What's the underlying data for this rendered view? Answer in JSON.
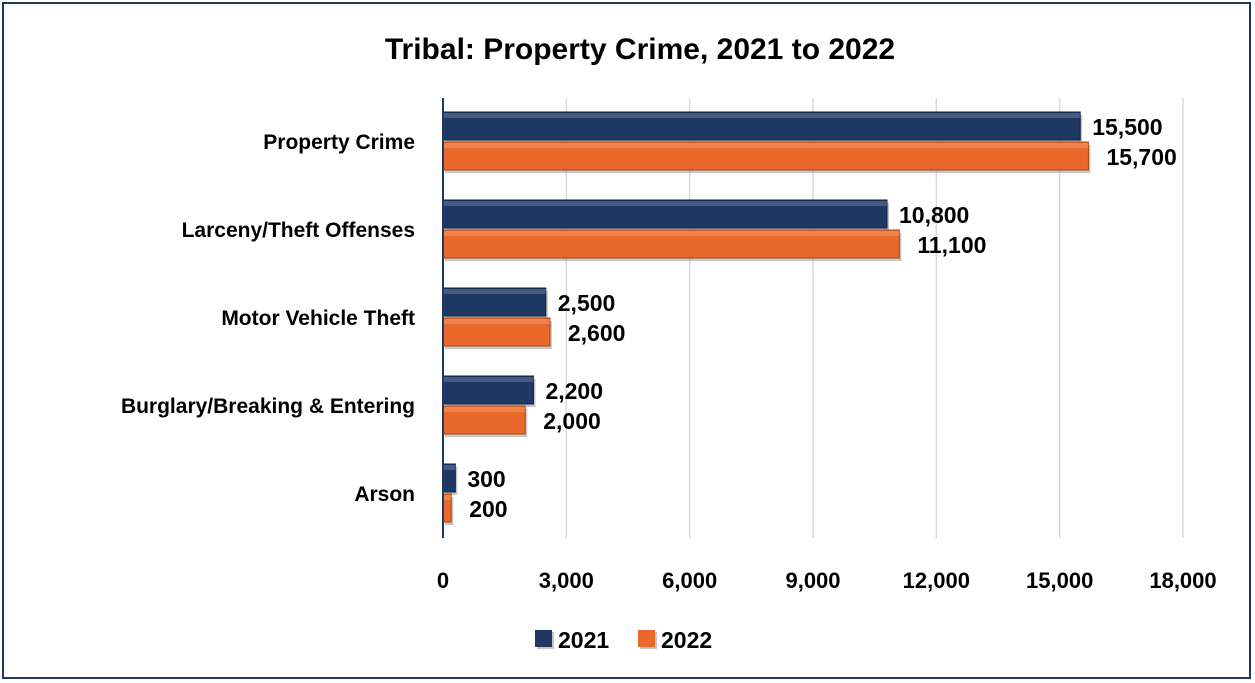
{
  "chart_data": {
    "type": "bar",
    "orientation": "horizontal",
    "title": "Tribal: Property Crime, 2021 to 2022",
    "categories": [
      "Property Crime",
      "Larceny/Theft Offenses",
      "Motor Vehicle Theft",
      "Burglary/Breaking & Entering",
      "Arson"
    ],
    "series": [
      {
        "name": "2021",
        "values": [
          15500,
          10800,
          2500,
          2200,
          300
        ],
        "labels": [
          "15,500",
          "10,800",
          "2,500",
          "2,200",
          "300"
        ],
        "color": "#1f3864"
      },
      {
        "name": "2022",
        "values": [
          15700,
          11100,
          2600,
          2000,
          200
        ],
        "labels": [
          "15,700",
          "11,100",
          "2,600",
          "2,000",
          "200"
        ],
        "color": "#e8692a"
      }
    ],
    "xlim": [
      0,
      18000
    ],
    "xticks": [
      0,
      3000,
      6000,
      9000,
      12000,
      15000,
      18000
    ],
    "xtick_labels": [
      "0",
      "3,000",
      "6,000",
      "9,000",
      "12,000",
      "15,000",
      "18,000"
    ],
    "grid": "vertical",
    "legend": "bottom"
  }
}
